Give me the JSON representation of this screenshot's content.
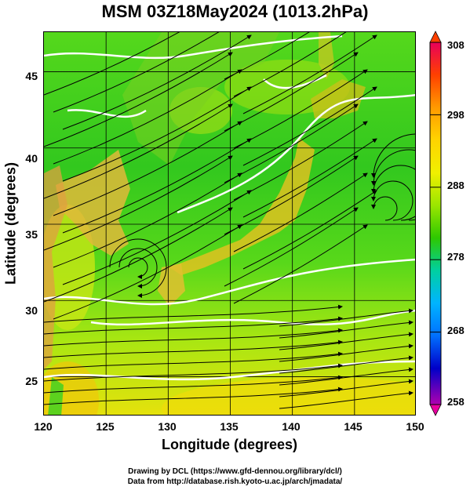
{
  "title": "MSM 03Z18May2024 (1013.2hPa)",
  "axes": {
    "xlabel": "Longitude (degrees)",
    "ylabel": "Latitude  (degrees)",
    "xticks": [
      "120",
      "125",
      "130",
      "135",
      "140",
      "145",
      "150"
    ],
    "yticks": [
      "45",
      "40",
      "35",
      "30",
      "25"
    ]
  },
  "colorbar": {
    "ticks": [
      "308",
      "298",
      "288",
      "278",
      "268",
      "258"
    ],
    "colors": [
      "#e8005a",
      "#ff4000",
      "#ff9a00",
      "#ffd400",
      "#f0f000",
      "#9be600",
      "#2ec800",
      "#00d0a0",
      "#00b4ff",
      "#0070ff",
      "#0000c8",
      "#b000b0"
    ]
  },
  "credits": {
    "line1": "Drawing by DCL (https://www.gfd-dennou.org/library/dcl/)",
    "line2": "Data from http://database.rish.kyoto-u.ac.jp/arch/jmadata/"
  },
  "chart_data": {
    "type": "heatmap",
    "title": "MSM 03Z18May2024 (1013.2hPa)",
    "xlabel": "Longitude (degrees)",
    "ylabel": "Latitude  (degrees)",
    "xlim": [
      120,
      150
    ],
    "ylim": [
      22.4,
      47.6
    ],
    "colorbar_range": [
      258,
      308
    ],
    "colorbar_ticks": [
      258,
      268,
      278,
      288,
      298,
      308
    ],
    "grid": true
  }
}
